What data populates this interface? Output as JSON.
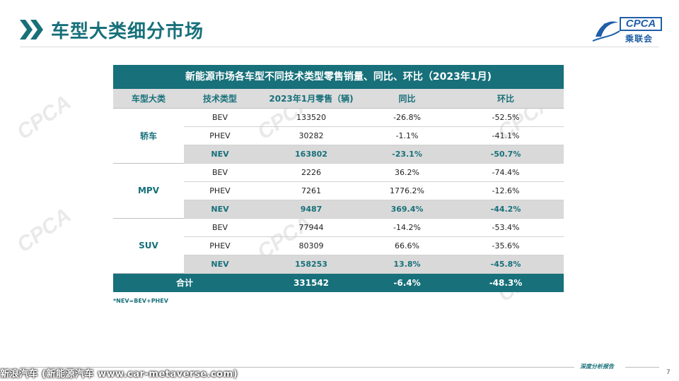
{
  "header": {
    "title": "车型大类细分市场",
    "logo_text": "CPCA",
    "logo_sub": "乘联会"
  },
  "table": {
    "title": "新能源市场各车型不同技术类型零售销量、同比、环比（2023年1月)",
    "columns": [
      "车型大类",
      "技术类型",
      "2023年1月零售（辆)",
      "同比",
      "环比"
    ],
    "groups": [
      {
        "category": "轿车",
        "rows": [
          {
            "type": "BEV",
            "sales": "133520",
            "yoy": "-26.8%",
            "mom": "-52.5%"
          },
          {
            "type": "PHEV",
            "sales": "30282",
            "yoy": "-1.1%",
            "mom": "-41.1%"
          },
          {
            "type": "NEV",
            "sales": "163802",
            "yoy": "-23.1%",
            "mom": "-50.7%"
          }
        ]
      },
      {
        "category": "MPV",
        "rows": [
          {
            "type": "BEV",
            "sales": "2226",
            "yoy": "36.2%",
            "mom": "-74.4%"
          },
          {
            "type": "PHEV",
            "sales": "7261",
            "yoy": "1776.2%",
            "mom": "-12.6%"
          },
          {
            "type": "NEV",
            "sales": "9487",
            "yoy": "369.4%",
            "mom": "-44.2%"
          }
        ]
      },
      {
        "category": "SUV",
        "rows": [
          {
            "type": "BEV",
            "sales": "77944",
            "yoy": "-14.2%",
            "mom": "-53.4%"
          },
          {
            "type": "PHEV",
            "sales": "80309",
            "yoy": "66.6%",
            "mom": "-35.6%"
          },
          {
            "type": "NEV",
            "sales": "158253",
            "yoy": "13.8%",
            "mom": "-45.8%"
          }
        ]
      }
    ],
    "total": {
      "label": "合计",
      "sales": "331542",
      "yoy": "-6.4%",
      "mom": "-48.3%"
    }
  },
  "footnote": "*NEV=BEV+PHEV",
  "footer": {
    "label": "深度分析报告",
    "page_number": "7",
    "source": "新浪汽车 (新能源汽车 www.car-metaverse.com)"
  },
  "colors": {
    "primary": "#17707a",
    "header_gray": "#dcdcdc",
    "nev_row": "#d9d9d9",
    "logo_blue": "#1f5fa8"
  }
}
